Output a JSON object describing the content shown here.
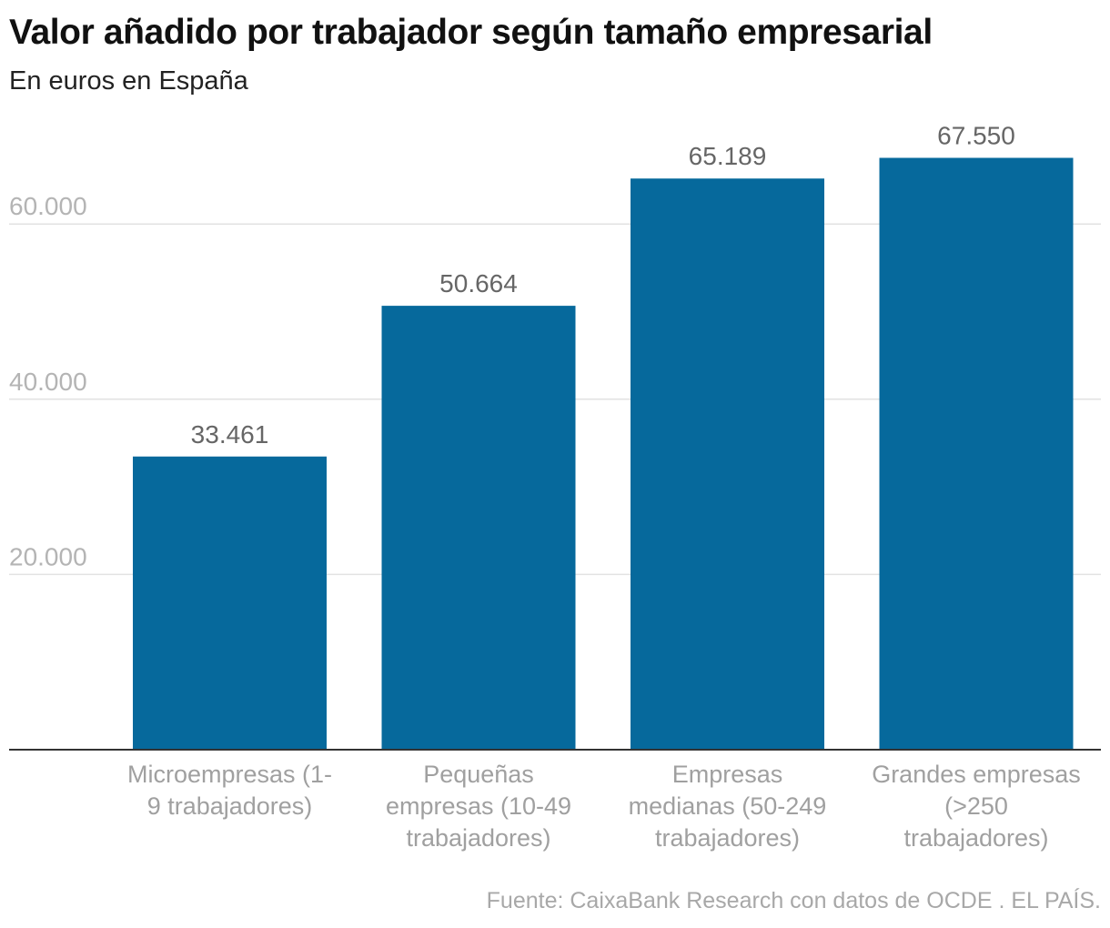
{
  "title": "Valor añadido por trabajador según tamaño empresarial",
  "subtitle": "En euros en España",
  "source": "Fuente: CaixaBank Research con datos de OCDE . EL PAÍS.",
  "colors": {
    "bar": "#06699c",
    "grid": "#e2e2e2",
    "axis": "#333333"
  },
  "chart_data": {
    "type": "bar",
    "title": "Valor añadido por trabajador según tamaño empresarial",
    "subtitle": "En euros en España",
    "categories": [
      [
        "Microempresas (1-",
        "9 trabajadores)"
      ],
      [
        "Pequeñas",
        "empresas (10-49",
        "trabajadores)"
      ],
      [
        "Empresas",
        "medianas (50-249",
        "trabajadores)"
      ],
      [
        "Grandes empresas",
        "(>250",
        "trabajadores)"
      ]
    ],
    "values": [
      33461,
      50664,
      65189,
      67550
    ],
    "value_labels": [
      "33.461",
      "50.664",
      "65.189",
      "67.550"
    ],
    "yticks": [
      20000,
      40000,
      60000
    ],
    "ytick_labels": [
      "20.000",
      "40.000",
      "60.000"
    ],
    "ylim": [
      0,
      70000
    ],
    "grid": true,
    "legend": "none"
  }
}
